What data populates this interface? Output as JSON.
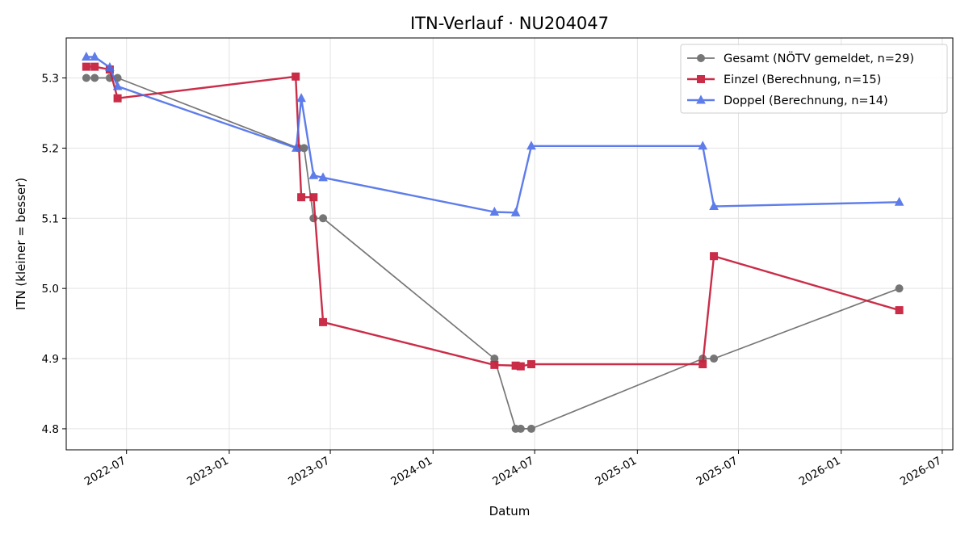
{
  "chart_data": {
    "type": "line",
    "title": "ITN-Verlauf · NU204047",
    "xlabel": "Datum",
    "ylabel": "ITN  (kleiner = besser)",
    "xlim": [
      "2022-03-15",
      "2026-07-20"
    ],
    "ylim": [
      4.77,
      5.357
    ],
    "grid": true,
    "legend_position": "top-right",
    "x_ticks": [
      "2022-07",
      "2023-01",
      "2023-07",
      "2024-01",
      "2024-07",
      "2025-01",
      "2025-07",
      "2026-01",
      "2026-07"
    ],
    "y_ticks": [
      "4.8",
      "4.9",
      "5.0",
      "5.1",
      "5.2",
      "5.3"
    ],
    "series": [
      {
        "name": "Gesamt (NÖTV gemeldet, n=29)",
        "color": "#555555",
        "marker": "circle",
        "x": [
          "2022-04-20",
          "2022-05-05",
          "2022-06-01",
          "2022-06-15",
          "2023-05-05",
          "2023-05-15",
          "2023-06-01",
          "2023-06-18",
          "2024-04-20",
          "2024-05-28",
          "2024-06-06",
          "2024-06-25",
          "2025-04-28",
          "2025-05-18",
          "2026-04-15"
        ],
        "y": [
          5.3,
          5.3,
          5.3,
          5.3,
          5.2,
          5.2,
          5.1,
          5.1,
          4.9,
          4.8,
          4.8,
          4.8,
          4.9,
          4.9,
          5.0
        ]
      },
      {
        "name": "Einzel (Berechnung, n=15)",
        "color": "#c8223f",
        "marker": "square",
        "x": [
          "2022-04-20",
          "2022-05-05",
          "2022-06-01",
          "2022-06-15",
          "2023-04-30",
          "2023-05-10",
          "2023-06-01",
          "2023-06-18",
          "2024-04-20",
          "2024-05-28",
          "2024-06-06",
          "2024-06-25",
          "2025-04-28",
          "2025-05-18",
          "2026-04-15"
        ],
        "y": [
          5.316,
          5.316,
          5.312,
          5.271,
          5.302,
          5.13,
          5.13,
          4.952,
          4.891,
          4.89,
          4.889,
          4.892,
          4.892,
          5.046,
          4.969
        ]
      },
      {
        "name": "Doppel (Berechnung, n=14)",
        "color": "#4d6fe8",
        "marker": "triangle",
        "x": [
          "2022-04-20",
          "2022-05-05",
          "2022-06-01",
          "2022-06-15",
          "2023-05-01",
          "2023-05-10",
          "2023-06-01",
          "2023-06-18",
          "2024-04-20",
          "2024-05-28",
          "2024-06-25",
          "2025-04-28",
          "2025-05-18",
          "2026-04-15"
        ],
        "y": [
          5.33,
          5.33,
          5.315,
          5.288,
          5.2,
          5.271,
          5.161,
          5.158,
          5.109,
          5.108,
          5.203,
          5.203,
          5.117,
          5.123
        ]
      }
    ]
  }
}
